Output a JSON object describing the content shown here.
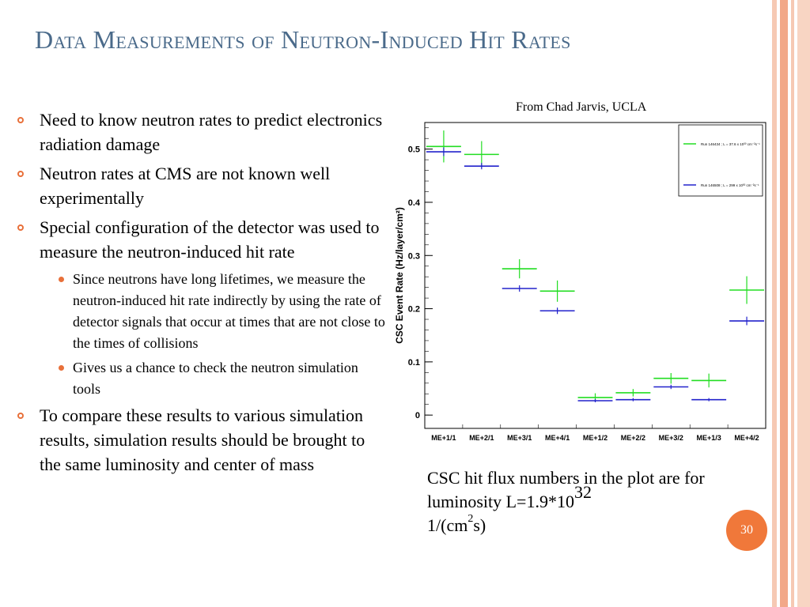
{
  "slide": {
    "title": "Data Measurements of Neutron-Induced Hit Rates",
    "page_number": "30",
    "credit": "From Chad Jarvis, UCLA",
    "caption_pre": "CSC hit flux numbers in the plot are for luminosity L=1.9*10",
    "caption_exp": "32",
    "caption_unit_a": "1/(cm",
    "caption_unit_sup": "2",
    "caption_unit_b": "s)",
    "bullets": [
      {
        "text": "Need to know neutron rates to predict  electronics radiation damage"
      },
      {
        "text": "Neutron rates at CMS are not known well experimentally"
      },
      {
        "text": "Special configuration of the detector was used to measure the neutron-induced hit rate"
      },
      {
        "text": "Since neutrons have long lifetimes, we measure the neutron-induced hit rate indirectly by using the rate of detector signals that occur at times that are not close to the times of collisions",
        "level": 2
      },
      {
        "text": "Gives us a chance to check the neutron simulation tools",
        "level": 2
      },
      {
        "text": "To compare these results to various simulation results, simulation results should be brought to the same luminosity and center of mass"
      }
    ]
  },
  "colors": {
    "title": "#4a6a8a",
    "bullet_accent": "#e8703a",
    "series_green": "#22dd22",
    "series_blue": "#2222cc"
  },
  "chart_data": {
    "type": "scatter",
    "title": "",
    "ylabel": "CSC Event Rate (Hz/layer/cm²)",
    "xlabel": "",
    "ylim": [
      -0.025,
      0.55
    ],
    "yticks": [
      0,
      0.1,
      0.2,
      0.3,
      0.4,
      0.5
    ],
    "categories": [
      "ME+1/1",
      "ME+2/1",
      "ME+3/1",
      "ME+4/1",
      "ME+1/2",
      "ME+2/2",
      "ME+3/2",
      "ME+1/3",
      "ME+4/2"
    ],
    "legend_position": "top-right",
    "series": [
      {
        "name": "Run 146434 ; L = 37.6 x 10³⁰ cm⁻²s⁻¹",
        "color": "#22dd22",
        "values": [
          0.505,
          0.49,
          0.275,
          0.233,
          0.033,
          0.042,
          0.069,
          0.065,
          0.235
        ],
        "errors": [
          0.03,
          0.025,
          0.018,
          0.02,
          0.008,
          0.007,
          0.01,
          0.013,
          0.026
        ]
      },
      {
        "name": "Run 146508 ; L = 299 x 10³⁰ cm⁻²s⁻¹",
        "color": "#2222cc",
        "values": [
          0.495,
          0.468,
          0.238,
          0.196,
          0.027,
          0.029,
          0.053,
          0.029,
          0.177
        ],
        "errors": [
          0.008,
          0.006,
          0.006,
          0.006,
          0.003,
          0.003,
          0.004,
          0.003,
          0.008
        ]
      }
    ]
  }
}
